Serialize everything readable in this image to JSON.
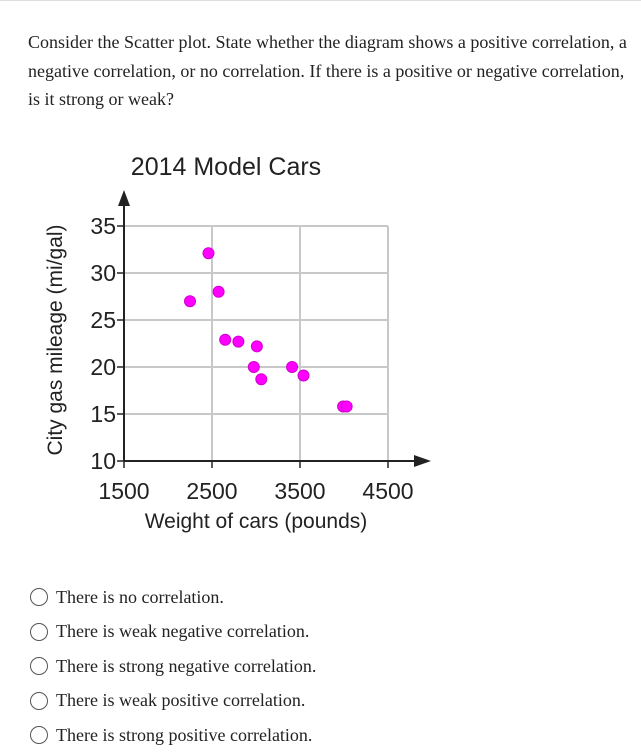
{
  "question": "Consider the Scatter plot.  State whether the diagram shows a positive correlation, a negative correlation, or no correlation.  If there is a positive or negative correlation, is it strong or weak?",
  "options": [
    "There is no correlation.",
    "There is weak negative correlation.",
    "There is strong negative correlation.",
    "There is weak positive correlation.",
    "There is strong positive correlation."
  ],
  "chart_data": {
    "type": "scatter",
    "title": "2014 Model Cars",
    "xlabel": "Weight of cars (pounds)",
    "ylabel": "City gas mileage (mi/gal)",
    "xlim": [
      1500,
      4500
    ],
    "ylim": [
      10,
      35
    ],
    "xticks": [
      "1500",
      "2500",
      "3500",
      "4500"
    ],
    "yticks": [
      "10",
      "15",
      "20",
      "25",
      "30",
      "35"
    ],
    "grid": true,
    "point_color": "#ff00ff",
    "points": [
      {
        "x": 2250,
        "y": 27
      },
      {
        "x": 2460,
        "y": 32.1
      },
      {
        "x": 2575,
        "y": 28
      },
      {
        "x": 2650,
        "y": 22.9
      },
      {
        "x": 2800,
        "y": 22.7
      },
      {
        "x": 3010,
        "y": 22.2
      },
      {
        "x": 2975,
        "y": 20
      },
      {
        "x": 3060,
        "y": 18.7
      },
      {
        "x": 3410,
        "y": 20
      },
      {
        "x": 3540,
        "y": 19.1
      },
      {
        "x": 3990,
        "y": 15.8
      },
      {
        "x": 4030,
        "y": 15.8
      }
    ]
  }
}
